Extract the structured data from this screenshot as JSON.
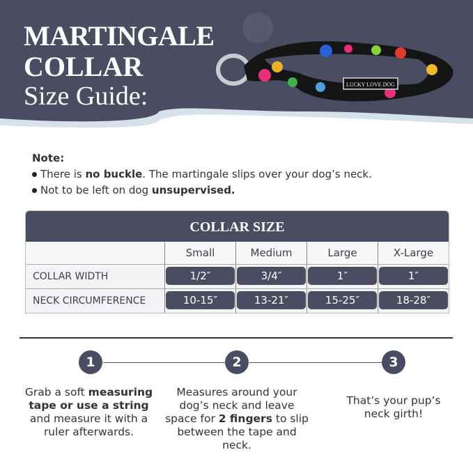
{
  "header": {
    "line1": "MARTINGALE",
    "line2": "COLLAR",
    "line3": "Size Guide:",
    "brand_tag": "LUCKY LOVE DOG"
  },
  "note": {
    "label": "Note:",
    "items": [
      {
        "pre": "There is ",
        "bold": "no buckle",
        "post": ". The martingale slips over your dog’s neck."
      },
      {
        "pre": "Not to be left on dog ",
        "bold": "unsupervised.",
        "post": ""
      }
    ]
  },
  "table": {
    "title": "COLLAR SIZE",
    "columns": [
      "Small",
      "Medium",
      "Large",
      "X-Large"
    ],
    "rows": [
      {
        "label": "COLLAR WIDTH",
        "values": [
          "1/2″",
          "3/4″",
          "1″",
          "1″"
        ]
      },
      {
        "label": "NECK CIRCUMFERENCE",
        "values": [
          "10-15″",
          "13-21″",
          "15-25″",
          "18-28″"
        ]
      }
    ]
  },
  "steps": [
    {
      "num": "1",
      "a": "Grab a soft ",
      "b": "measuring tape or use a string",
      "c": " and measure it with a ruler afterwards."
    },
    {
      "num": "2",
      "a": "Measures around your dog’s neck and leave space for ",
      "b": "2 fingers",
      "c": " to slip between the tape and neck."
    },
    {
      "num": "3",
      "a": "That’s your pup’s neck girth!",
      "b": "",
      "c": ""
    }
  ],
  "colors": {
    "navy": "#4a4d62",
    "wave": "#d5e2ea"
  }
}
